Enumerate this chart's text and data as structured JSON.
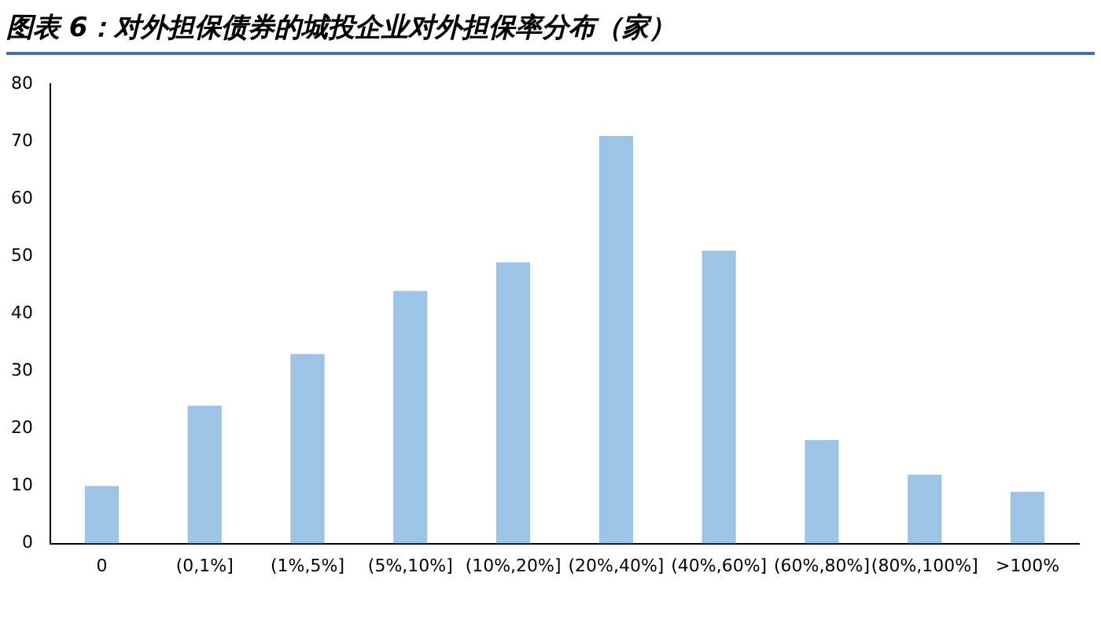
{
  "chart_data": {
    "type": "bar",
    "title": "图表 6：对外担保债券的城投企业对外担保率分布（家）",
    "categories": [
      "0",
      "(0,1%]",
      "(1%,5%]",
      "(5%,10%]",
      "(10%,20%]",
      "(20%,40%]",
      "(40%,60%]",
      "(60%,80%]",
      "(80%,100%]",
      ">100%"
    ],
    "values": [
      10,
      24,
      33,
      44,
      49,
      71,
      51,
      18,
      12,
      9
    ],
    "color": "#9dc3e6",
    "ylim": [
      0,
      80
    ],
    "yticks": [
      0,
      10,
      20,
      30,
      40,
      50,
      60,
      70,
      80
    ],
    "grid": false,
    "legend": false
  }
}
